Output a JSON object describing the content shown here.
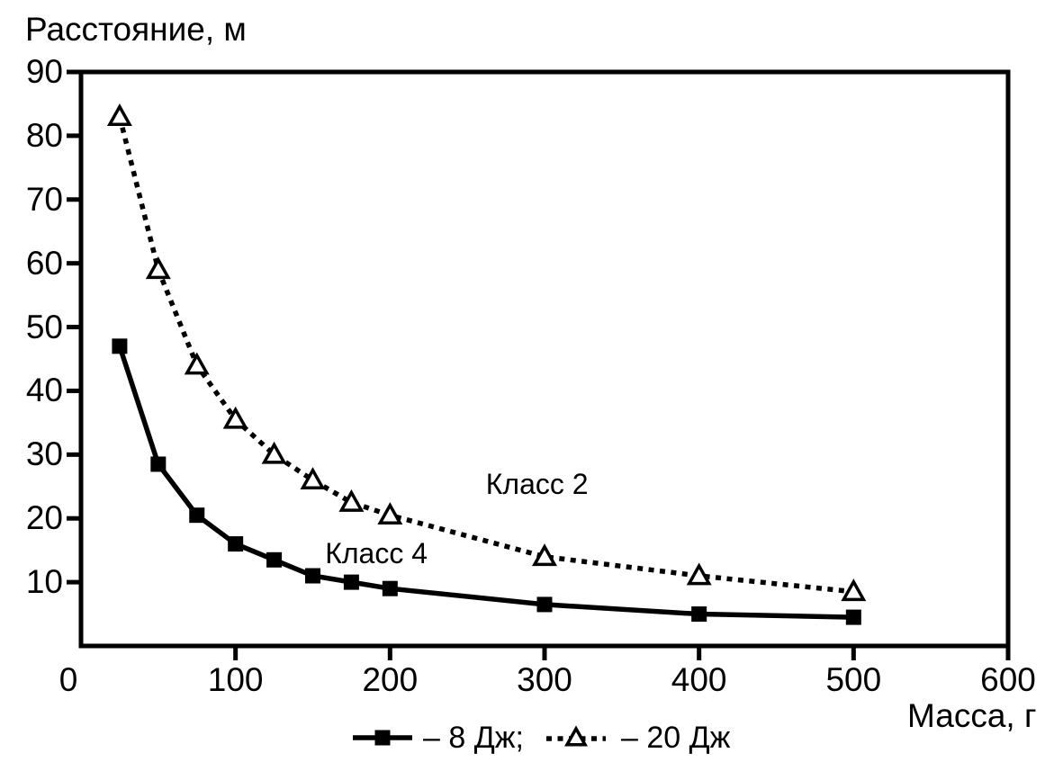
{
  "colors": {
    "ink": "#000000",
    "background": "#ffffff"
  },
  "chart_data": {
    "type": "line",
    "title": "",
    "ylabel": "Расстояние, м",
    "xlabel": "Масса, г",
    "x": [
      25,
      50,
      75,
      100,
      125,
      150,
      175,
      200,
      300,
      400,
      500
    ],
    "series": [
      {
        "name": "8 Дж",
        "legend_label": "– 8 Дж;",
        "line_style": "solid",
        "marker": "filled-square",
        "values": [
          47,
          28.5,
          20.5,
          16,
          13.5,
          11,
          10,
          9,
          6.5,
          5,
          4.5
        ],
        "annotation": {
          "text": "Класс 4",
          "x": 158,
          "y": 16.9
        }
      },
      {
        "name": "20 Дж",
        "legend_label": "– 20 Дж",
        "line_style": "dotted",
        "marker": "open-triangle",
        "values": [
          83,
          59,
          44,
          35.5,
          30,
          26,
          22.5,
          20.5,
          14,
          11,
          8.5
        ],
        "annotation": {
          "text": "Класс 2",
          "x": 262,
          "y": 27.8
        }
      }
    ],
    "xlim": [
      0,
      600
    ],
    "ylim": [
      0,
      90
    ],
    "xticks": [
      0,
      100,
      200,
      300,
      400,
      500,
      600
    ],
    "yticks": [
      10,
      20,
      30,
      40,
      50,
      60,
      70,
      80,
      90
    ],
    "grid": false,
    "legend_position": "bottom-center"
  }
}
